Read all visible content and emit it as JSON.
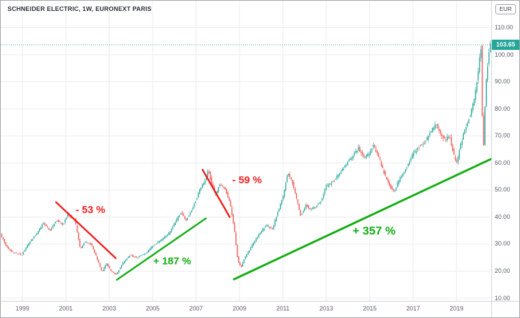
{
  "legend": {
    "text": "SCHNEIDER ELECTRIC, 1W, EURONEXT PARIS"
  },
  "axes": {
    "currency_label": "EUR",
    "current_price_label": "103.65",
    "price_ticks": [
      {
        "value": 110,
        "label": "110.00"
      },
      {
        "value": 100,
        "label": "100.00"
      },
      {
        "value": 90,
        "label": "90.00"
      },
      {
        "value": 80,
        "label": "80.00"
      },
      {
        "value": 70,
        "label": "70.00"
      },
      {
        "value": 60,
        "label": "60.00"
      },
      {
        "value": 50,
        "label": "50.00"
      },
      {
        "value": 40,
        "label": "40.00"
      },
      {
        "value": 30,
        "label": "30.00"
      },
      {
        "value": 20,
        "label": "20.00"
      },
      {
        "value": 10,
        "label": "10.00"
      }
    ],
    "year_ticks": [
      {
        "value": 1999,
        "label": "1999"
      },
      {
        "value": 2001,
        "label": "2001"
      },
      {
        "value": 2003,
        "label": "2003"
      },
      {
        "value": 2005,
        "label": "2005"
      },
      {
        "value": 2007,
        "label": "2007"
      },
      {
        "value": 2009,
        "label": "2009"
      },
      {
        "value": 2011,
        "label": "2011"
      },
      {
        "value": 2013,
        "label": "2013"
      },
      {
        "value": 2015,
        "label": "2015"
      },
      {
        "value": 2017,
        "label": "2017"
      },
      {
        "value": 2019,
        "label": "2019"
      }
    ]
  },
  "colors": {
    "up": "#26a69a",
    "down": "#ef5350",
    "grid": "#ececec",
    "axis_text": "#585c66",
    "price_badge_bg": "#26a69a",
    "annotation_red": "#f01d1d",
    "annotation_green": "#12ad12"
  },
  "chart_data": {
    "type": "candlestick",
    "title": "SCHNEIDER ELECTRIC, 1W, EURONEXT PARIS",
    "xlabel": "",
    "ylabel": "EUR",
    "grid": true,
    "x_range_years": [
      1998.0,
      2020.6
    ],
    "y_range_price": [
      9,
      120
    ],
    "price_tick_values": [
      10,
      20,
      30,
      40,
      50,
      60,
      70,
      80,
      90,
      100,
      110
    ],
    "year_tick_values": [
      1999,
      2001,
      2003,
      2005,
      2007,
      2009,
      2011,
      2013,
      2015,
      2017,
      2019
    ],
    "up_color": "#26a69a",
    "down_color": "#ef5350",
    "price_line": {
      "value": 103.65,
      "color": "#26a69a"
    },
    "price_anchors": [
      [
        1998.0,
        34
      ],
      [
        1998.3,
        29
      ],
      [
        1998.6,
        27
      ],
      [
        1999.0,
        26
      ],
      [
        1999.3,
        30
      ],
      [
        1999.7,
        34
      ],
      [
        2000.0,
        38
      ],
      [
        2000.3,
        35
      ],
      [
        2000.6,
        39
      ],
      [
        2000.9,
        37
      ],
      [
        2001.1,
        41
      ],
      [
        2001.45,
        39
      ],
      [
        2001.7,
        28
      ],
      [
        2001.9,
        31
      ],
      [
        2002.2,
        30
      ],
      [
        2002.45,
        25
      ],
      [
        2002.7,
        19.5
      ],
      [
        2002.9,
        23
      ],
      [
        2003.1,
        20
      ],
      [
        2003.35,
        18.8
      ],
      [
        2003.7,
        23.5
      ],
      [
        2004.0,
        26
      ],
      [
        2004.3,
        25
      ],
      [
        2004.7,
        26.5
      ],
      [
        2005.0,
        29
      ],
      [
        2005.4,
        31.5
      ],
      [
        2005.8,
        34
      ],
      [
        2006.1,
        38.5
      ],
      [
        2006.35,
        42
      ],
      [
        2006.55,
        38.5
      ],
      [
        2006.8,
        42
      ],
      [
        2007.0,
        46
      ],
      [
        2007.2,
        50
      ],
      [
        2007.45,
        53.5
      ],
      [
        2007.6,
        57.5
      ],
      [
        2007.75,
        52
      ],
      [
        2007.95,
        48
      ],
      [
        2008.1,
        52
      ],
      [
        2008.35,
        51
      ],
      [
        2008.6,
        45
      ],
      [
        2008.8,
        35
      ],
      [
        2008.95,
        24
      ],
      [
        2009.1,
        21.5
      ],
      [
        2009.25,
        24.5
      ],
      [
        2009.5,
        28
      ],
      [
        2009.75,
        31.5
      ],
      [
        2010.0,
        34.5
      ],
      [
        2010.3,
        37
      ],
      [
        2010.55,
        35.5
      ],
      [
        2010.8,
        42
      ],
      [
        2011.05,
        48
      ],
      [
        2011.25,
        56.5
      ],
      [
        2011.5,
        52
      ],
      [
        2011.65,
        47
      ],
      [
        2011.85,
        40.5
      ],
      [
        2012.1,
        44.5
      ],
      [
        2012.3,
        42.5
      ],
      [
        2012.55,
        44
      ],
      [
        2012.8,
        46
      ],
      [
        2013.0,
        51
      ],
      [
        2013.3,
        53
      ],
      [
        2013.6,
        55.5
      ],
      [
        2013.9,
        59
      ],
      [
        2014.2,
        62
      ],
      [
        2014.5,
        65.5
      ],
      [
        2014.75,
        62
      ],
      [
        2015.0,
        63.5
      ],
      [
        2015.2,
        66.5
      ],
      [
        2015.5,
        61
      ],
      [
        2015.75,
        55
      ],
      [
        2016.0,
        51
      ],
      [
        2016.15,
        49.5
      ],
      [
        2016.4,
        54
      ],
      [
        2016.7,
        58
      ],
      [
        2017.0,
        63
      ],
      [
        2017.3,
        66
      ],
      [
        2017.6,
        68
      ],
      [
        2017.9,
        72.5
      ],
      [
        2018.1,
        74.5
      ],
      [
        2018.3,
        71
      ],
      [
        2018.5,
        68.5
      ],
      [
        2018.7,
        70
      ],
      [
        2018.9,
        63
      ],
      [
        2019.05,
        60
      ],
      [
        2019.2,
        66
      ],
      [
        2019.4,
        72
      ],
      [
        2019.6,
        76.5
      ],
      [
        2019.75,
        80
      ],
      [
        2019.9,
        86
      ],
      [
        2020.0,
        92
      ],
      [
        2020.1,
        100
      ],
      [
        2020.15,
        104.5
      ],
      [
        2020.21,
        80
      ],
      [
        2020.26,
        62
      ],
      [
        2020.32,
        78
      ],
      [
        2020.38,
        88
      ],
      [
        2020.45,
        95
      ],
      [
        2020.55,
        103.65
      ]
    ],
    "annotations": [
      {
        "id": "trendline-decline-2001-2003",
        "label": "- 53 %",
        "color": "#f01d1d",
        "width": 2.5,
        "x1": 2000.55,
        "p1": 45.5,
        "x2": 2003.3,
        "p2": 24.8,
        "label_x": 2001.45,
        "label_p": 41.5,
        "anchor": "start",
        "font_size": 15
      },
      {
        "id": "trendline-rally-2003-2007",
        "label": "+ 187 %",
        "color": "#12ad12",
        "width": 2.5,
        "x1": 2003.35,
        "p1": 16.8,
        "x2": 2007.45,
        "p2": 39.5,
        "label_x": 2005.9,
        "label_p": 22.5,
        "anchor": "middle",
        "font_size": 15
      },
      {
        "id": "trendline-decline-2007-2008",
        "label": "- 59 %",
        "color": "#f01d1d",
        "width": 2.5,
        "x1": 2007.3,
        "p1": 57.5,
        "x2": 2008.55,
        "p2": 40,
        "label_x": 2009.35,
        "label_p": 52.5,
        "anchor": "middle",
        "font_size": 15
      },
      {
        "id": "trendline-rally-2009-2020",
        "label": "+ 357 %",
        "color": "#12ad12",
        "width": 3,
        "x1": 2008.75,
        "p1": 17,
        "x2": 2020.6,
        "p2": 61.5,
        "label_x": 2015.2,
        "label_p": 33.5,
        "anchor": "middle",
        "font_size": 17
      }
    ]
  }
}
